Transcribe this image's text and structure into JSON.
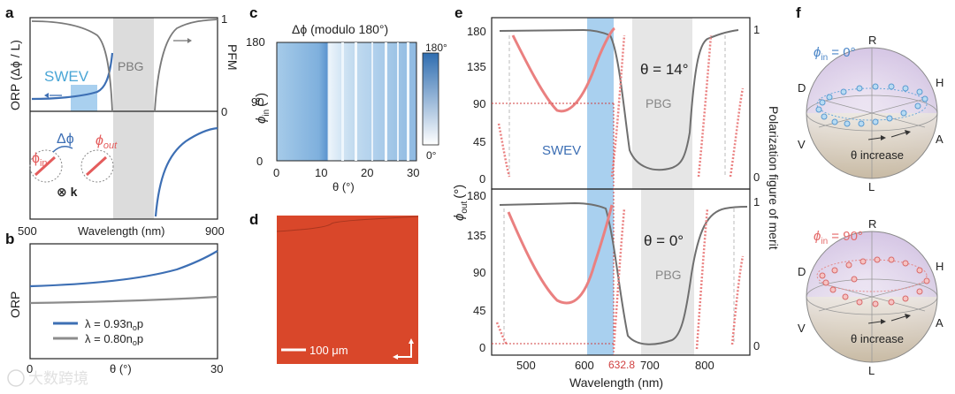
{
  "panels": {
    "a": {
      "label": "a",
      "left_axis_label": "ORP (Δϕ / L)",
      "right_axis_label": "PFM",
      "right_ticks": [
        "1",
        "0"
      ],
      "swev_label": "SWEV",
      "pbg_label": "PBG",
      "delta_phi_label": "Δϕ",
      "phi_in_label": "ϕ",
      "phi_in_sub": "in",
      "phi_out_label": "ϕ",
      "phi_out_sub": "out",
      "k_label": "⊗ k",
      "x_ticks": [
        "500",
        "900"
      ],
      "xlabel": "Wavelength (nm)"
    },
    "b": {
      "label": "b",
      "ylabel": "ORP",
      "x_ticks": [
        "0",
        "30"
      ],
      "xlabel": "θ (°)",
      "legend": [
        {
          "text": "λ = 0.93n",
          "sub": "o",
          "tail": "p",
          "color": "#3d6fb4"
        },
        {
          "text": "λ = 0.80n",
          "sub": "o",
          "tail": "p",
          "color": "#8c8c8c"
        }
      ]
    },
    "c": {
      "label": "c",
      "title": "Δϕ (modulo 180°)",
      "ylabel": "ϕ",
      "ylabel_sub": "in",
      "ylabel_unit": "(°)",
      "y_ticks": [
        "0",
        "90",
        "180"
      ],
      "x_ticks": [
        "0",
        "10",
        "20",
        "30"
      ],
      "xlabel": "θ (°)",
      "colorbar_ticks": [
        "180°",
        "0°"
      ]
    },
    "d": {
      "label": "d",
      "scale_label": "100 μm"
    },
    "e": {
      "label": "e",
      "ylabel": "ϕ",
      "ylabel_sub": "out",
      "ylabel_unit": "(°)",
      "right_label": "Polarization figure of merit",
      "y_ticks": [
        "0",
        "45",
        "90",
        "135",
        "180"
      ],
      "right_ticks": [
        "1",
        "0"
      ],
      "x_ticks": [
        "500",
        "600",
        "700",
        "800"
      ],
      "xlabel": "Wavelength (nm)",
      "marker_label": "632.8",
      "top_theta": "θ = 14°",
      "bottom_theta": "θ = 0°",
      "swev_label": "SWEV",
      "pbg_label": "PBG"
    },
    "f": {
      "label": "f",
      "spheres": [
        {
          "phi": "ϕ",
          "sub": "in",
          "value": " = 0°",
          "color": "#4b86c8"
        },
        {
          "phi": "ϕ",
          "sub": "in",
          "value": " = 90°",
          "color": "#e46a6a"
        }
      ],
      "pole_labels": [
        "R",
        "L",
        "D",
        "H",
        "V",
        "A"
      ],
      "increase_label": "θ increase"
    }
  },
  "watermark": "大数跨境",
  "colors": {
    "blue": "#3d6fb4",
    "light_blue": "#a9d0ef",
    "gray": "#7a7a7a",
    "red": "#ea8080",
    "pbg": "#dcdcdc"
  }
}
